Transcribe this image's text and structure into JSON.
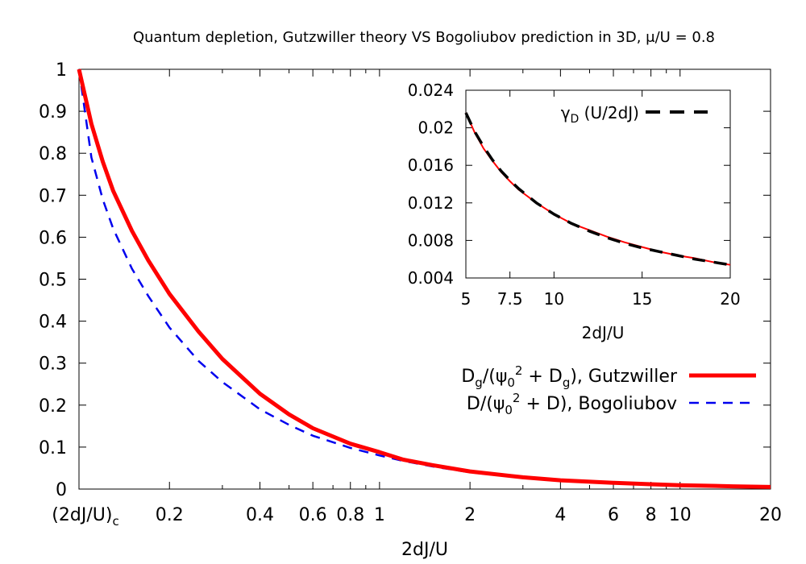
{
  "chart_data": [
    {
      "type": "line",
      "title": "Quantum depletion, Gutzwiller theory VS Bogoliubov prediction in 3D, μ/U = 0.8",
      "xlabel": "2dJ/U",
      "ylabel": "",
      "xscale": "log",
      "xlim": [
        0.1,
        20
      ],
      "ylim": [
        0,
        1
      ],
      "grid": false,
      "legend_position": "bottom-right",
      "xticks": [
        {
          "value": 0.1,
          "label_main": "(2dJ/U)",
          "label_sub": "c"
        },
        {
          "value": 0.2,
          "label_main": "0.2"
        },
        {
          "value": 0.4,
          "label_main": "0.4"
        },
        {
          "value": 0.6,
          "label_main": "0.6"
        },
        {
          "value": 0.8,
          "label_main": "0.8"
        },
        {
          "value": 1,
          "label_main": "1"
        },
        {
          "value": 2,
          "label_main": "2"
        },
        {
          "value": 4,
          "label_main": "4"
        },
        {
          "value": 6,
          "label_main": "6"
        },
        {
          "value": 8,
          "label_main": "8"
        },
        {
          "value": 10,
          "label_main": "10"
        },
        {
          "value": 20,
          "label_main": "20"
        }
      ],
      "yticks": [
        {
          "value": 0,
          "label": "0"
        },
        {
          "value": 0.1,
          "label": "0.1"
        },
        {
          "value": 0.2,
          "label": "0.2"
        },
        {
          "value": 0.3,
          "label": "0.3"
        },
        {
          "value": 0.4,
          "label": "0.4"
        },
        {
          "value": 0.5,
          "label": "0.5"
        },
        {
          "value": 0.6,
          "label": "0.6"
        },
        {
          "value": 0.7,
          "label": "0.7"
        },
        {
          "value": 0.8,
          "label": "0.8"
        },
        {
          "value": 0.9,
          "label": "0.9"
        },
        {
          "value": 1,
          "label": "1"
        }
      ],
      "series": [
        {
          "name": "Gutzwiller",
          "legend_parts": [
            "D",
            "g",
            "/(ψ",
            "0",
            "2",
            " + D",
            "g",
            "), Gutzwiller"
          ],
          "color": "#ff0000",
          "style": "solid",
          "x": [
            0.1,
            0.11,
            0.12,
            0.13,
            0.15,
            0.17,
            0.2,
            0.25,
            0.3,
            0.4,
            0.5,
            0.6,
            0.8,
            1.0,
            1.2,
            1.5,
            2,
            3,
            4,
            6,
            8,
            10,
            15,
            20
          ],
          "y": [
            1.0,
            0.87,
            0.78,
            0.71,
            0.615,
            0.545,
            0.465,
            0.375,
            0.31,
            0.227,
            0.178,
            0.145,
            0.108,
            0.088,
            0.07,
            0.057,
            0.042,
            0.028,
            0.021,
            0.015,
            0.0115,
            0.0093,
            0.0065,
            0.005
          ]
        },
        {
          "name": "Bogoliubov",
          "legend_parts": [
            "D/(ψ",
            "0",
            "2",
            " + D), Bogoliubov"
          ],
          "color": "#0000ee",
          "style": "dashed",
          "x": [
            0.1,
            0.11,
            0.12,
            0.13,
            0.15,
            0.17,
            0.2,
            0.25,
            0.3,
            0.4,
            0.5,
            0.6,
            0.8,
            1.0,
            1.2,
            1.5,
            2,
            3,
            4,
            6,
            8,
            10,
            15,
            20
          ],
          "y": [
            1.0,
            0.79,
            0.69,
            0.62,
            0.525,
            0.46,
            0.385,
            0.305,
            0.255,
            0.19,
            0.153,
            0.127,
            0.098,
            0.08,
            0.067,
            0.054,
            0.04,
            0.027,
            0.02,
            0.014,
            0.011,
            0.009,
            0.0062,
            0.0047
          ]
        }
      ]
    },
    {
      "type": "line",
      "title": "",
      "xlabel": "2dJ/U",
      "ylabel": "",
      "xlim": [
        5,
        20
      ],
      "ylim": [
        0.004,
        0.024
      ],
      "grid": false,
      "legend_position": "top-right",
      "xticks": [
        {
          "value": 5,
          "label": "5"
        },
        {
          "value": 7.5,
          "label": "7.5"
        },
        {
          "value": 10,
          "label": "10"
        },
        {
          "value": 15,
          "label": "15"
        },
        {
          "value": 20,
          "label": "20"
        }
      ],
      "yticks": [
        {
          "value": 0.004,
          "label": "0.004"
        },
        {
          "value": 0.008,
          "label": "0.008"
        },
        {
          "value": 0.012,
          "label": "0.012"
        },
        {
          "value": 0.016,
          "label": "0.016"
        },
        {
          "value": 0.02,
          "label": "0.02"
        },
        {
          "value": 0.024,
          "label": "0.024"
        }
      ],
      "series": [
        {
          "name": "Gutzwiller",
          "color": "#ff0000",
          "style": "solid",
          "x": [
            5,
            5.5,
            6,
            6.5,
            7,
            7.5,
            8,
            9,
            10,
            11,
            12,
            13,
            14,
            15,
            16,
            17,
            18,
            19,
            20
          ],
          "y": [
            0.0216,
            0.0195,
            0.0178,
            0.0165,
            0.0153,
            0.0143,
            0.0134,
            0.012,
            0.0108,
            0.0098,
            0.0091,
            0.0084,
            0.0078,
            0.0073,
            0.0068,
            0.0064,
            0.0061,
            0.0057,
            0.0054
          ]
        },
        {
          "name": "γD (U/2dJ)",
          "legend_parts": [
            "γ",
            "D",
            " (U/2dJ)"
          ],
          "color": "#000000",
          "style": "dashed",
          "x": [
            5,
            5.5,
            6,
            6.5,
            7,
            7.5,
            8,
            9,
            10,
            11,
            12,
            13,
            14,
            15,
            16,
            17,
            18,
            19,
            20
          ],
          "y": [
            0.0216,
            0.0196,
            0.018,
            0.0166,
            0.0154,
            0.0144,
            0.0135,
            0.012,
            0.0108,
            0.0098,
            0.009,
            0.0083,
            0.0077,
            0.0072,
            0.0068,
            0.0064,
            0.006,
            0.0057,
            0.0054
          ]
        }
      ]
    }
  ]
}
